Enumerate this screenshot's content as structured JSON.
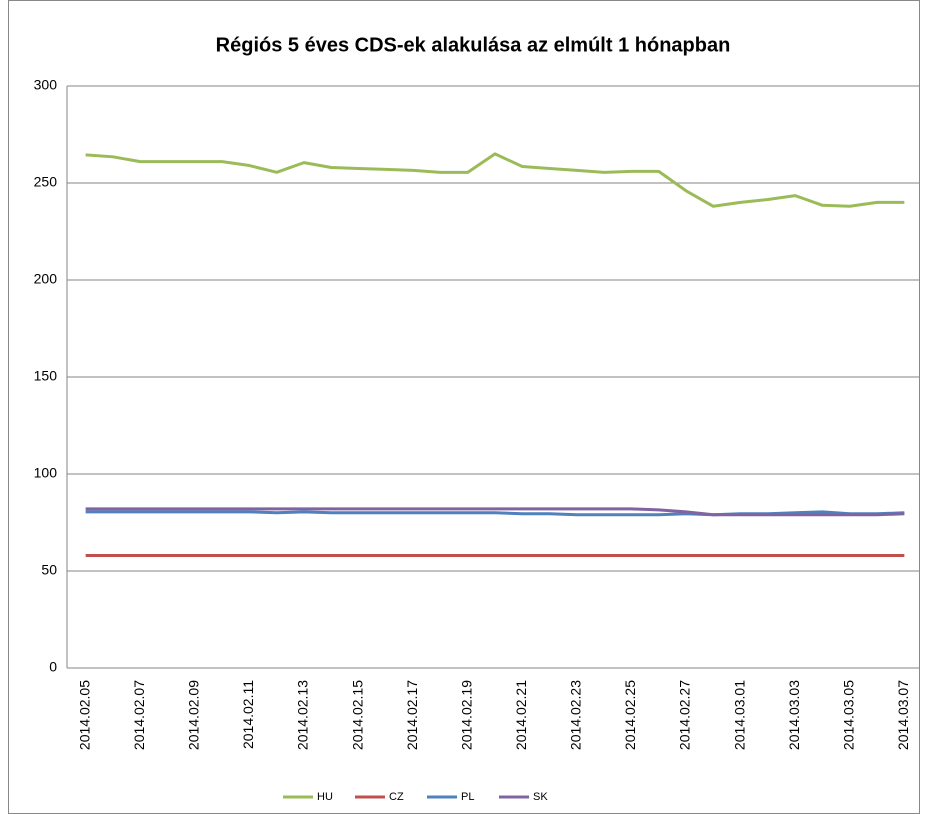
{
  "chart_data": {
    "type": "line",
    "title": "Régiós  5 éves CDS-ek alakulása az elmúlt 1 hónapban",
    "categories": [
      "2014.02.05",
      null,
      "2014.02.07",
      null,
      "2014.02.09",
      null,
      "2014.02.11",
      null,
      "2014.02.13",
      null,
      "2014.02.15",
      null,
      "2014.02.17",
      null,
      "2014.02.19",
      null,
      "2014.02.21",
      null,
      "2014.02.23",
      null,
      "2014.02.25",
      null,
      "2014.02.27",
      null,
      "2014.03.01",
      null,
      "2014.03.03",
      null,
      "2014.03.05",
      null,
      "2014.03.07"
    ],
    "series": [
      {
        "name": "HU",
        "color": "#9bbb59",
        "values": [
          264.5,
          263.5,
          261,
          261,
          261,
          261,
          259,
          255.5,
          260.5,
          258,
          257.5,
          257,
          256.5,
          255.5,
          255.5,
          265,
          258.5,
          257.5,
          256.5,
          255.5,
          256,
          256,
          246,
          238,
          240,
          241.5,
          243.5,
          238.5,
          238,
          240,
          240
        ]
      },
      {
        "name": "CZ",
        "color": "#c0504d",
        "values": [
          58,
          58,
          58,
          58,
          58,
          58,
          58,
          58,
          58,
          58,
          58,
          58,
          58,
          58,
          58,
          58,
          58,
          58,
          58,
          58,
          58,
          58,
          58,
          58,
          58,
          58,
          58,
          58,
          58,
          58,
          58
        ]
      },
      {
        "name": "PL",
        "color": "#4f81bd",
        "values": [
          80.5,
          80.5,
          80.5,
          80.5,
          80.5,
          80.5,
          80.5,
          80,
          80.5,
          80,
          80,
          80,
          80,
          80,
          80,
          80,
          79.5,
          79.5,
          79,
          79,
          79,
          79,
          79.5,
          79,
          79.5,
          79.5,
          80,
          80.5,
          79.5,
          79.5,
          80
        ]
      },
      {
        "name": "SK",
        "color": "#8064a2",
        "values": [
          82,
          82,
          82,
          82,
          82,
          82,
          82,
          82,
          82,
          82,
          82,
          82,
          82,
          82,
          82,
          82,
          82,
          82,
          82,
          82,
          82,
          81.5,
          80.5,
          79,
          79,
          79,
          79,
          79,
          79,
          79,
          79.5
        ]
      }
    ],
    "ylim": [
      0,
      300
    ],
    "yticks": [
      0,
      50,
      100,
      150,
      200,
      250,
      300
    ],
    "grid": true,
    "legend": "bottom"
  }
}
